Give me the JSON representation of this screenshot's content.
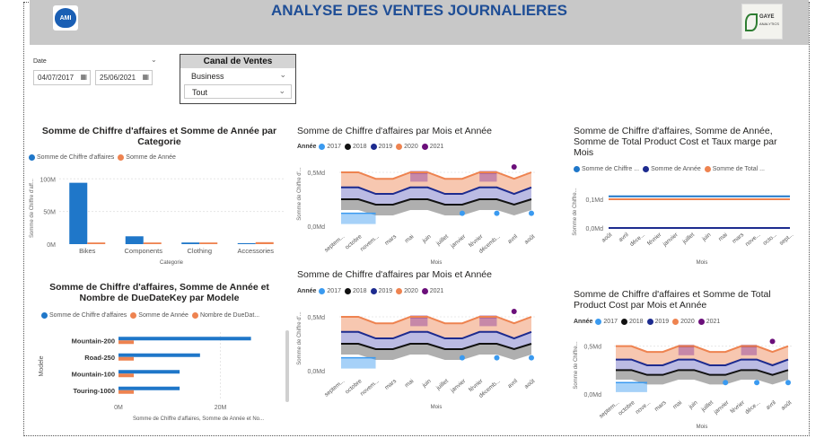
{
  "header": {
    "title": "ANALYSE DES VENTES JOURNALIERES",
    "logo_left": "AMI",
    "logo_right_1": "GAYE",
    "logo_right_2": "ANALYTICS"
  },
  "date_filter": {
    "label": "Date",
    "start": "04/07/2017",
    "end": "25/06/2021"
  },
  "canal": {
    "title": "Canal de Ventes",
    "option1": "Business",
    "option2": "Tout"
  },
  "colors": {
    "blue": "#1f77c9",
    "orange": "#ee8350",
    "black": "#111111",
    "navy": "#1d2b8f",
    "purple": "#6b0f7a",
    "lightblue": "#3a9af0"
  },
  "chart1": {
    "title_l1": "Somme de Chiffre d'affaires et Somme de Année par",
    "title_l2": "Categorie",
    "legend": [
      "Somme de Chiffre d'affaires",
      "Somme de Année"
    ],
    "ylabel": "Somme de Chiffre d'aff...",
    "xlabel": "Categorie",
    "ticks": [
      "100M",
      "50M",
      "0M"
    ]
  },
  "chart2": {
    "title_l1": "Somme de Chiffre d'affaires, Somme de Année et",
    "title_l2": "Nombre de DueDateKey par Modele",
    "legend": [
      "Somme de Chiffre d'affaires",
      "Somme de Année",
      "Nombre de DueDat..."
    ],
    "ylabel": "Modele",
    "xlabel": "Somme de Chiffre d'affaires, Somme de Année et No...",
    "ticks": [
      "0M",
      "20M"
    ]
  },
  "chart3": {
    "title": "Somme de Chiffre d'affaires par Mois et Année",
    "legend_label": "Année",
    "years": [
      "2017",
      "2018",
      "2019",
      "2020",
      "2021"
    ],
    "ylabel": "Somme de Chiffre d'...",
    "xlabel": "Mois",
    "ticks": [
      "0,5Md",
      "0,0Md"
    ],
    "months": [
      "septem...",
      "octobre",
      "novem...",
      "mars",
      "mai",
      "juin",
      "juillet",
      "janvier",
      "février",
      "décemb...",
      "avril",
      "août"
    ]
  },
  "chart4": {
    "title": "Somme de Chiffre d'affaires par Mois et Année",
    "legend_label": "Année",
    "years": [
      "2017",
      "2018",
      "2019",
      "2020",
      "2021"
    ],
    "ylabel": "Somme de Chiffre d'...",
    "xlabel": "Mois",
    "ticks": [
      "0,5Md",
      "0,0Md"
    ],
    "months": [
      "septem...",
      "octobre",
      "novem...",
      "mars",
      "mai",
      "juin",
      "juillet",
      "janvier",
      "février",
      "décemb...",
      "avril",
      "août"
    ]
  },
  "chart5": {
    "title_l1": "Somme de Chiffre d'affaires, Somme de Année,",
    "title_l2": "Somme de Total Product Cost et Taux marge par",
    "title_l3": "Mois",
    "legend": [
      "Somme de Chiffre ...",
      "Somme de Année",
      "Somme de Total ..."
    ],
    "ylabel": "Somme de Chiffre...",
    "xlabel": "Mois",
    "ticks": [
      "0,1Md",
      "0,0Md"
    ],
    "months": [
      "août",
      "avril",
      "déce...",
      "février",
      "janvier",
      "juillet",
      "juin",
      "mai",
      "mars",
      "nove...",
      "octo...",
      "sept..."
    ]
  },
  "chart6": {
    "title_l1": "Somme de Chiffre d'affaires et Somme de Total",
    "title_l2": "Product Cost par Mois et Année",
    "legend_label": "Année",
    "years": [
      "2017",
      "2018",
      "2019",
      "2020",
      "2021"
    ],
    "ylabel": "Somme de Chiffre...",
    "xlabel": "Mois",
    "ticks": [
      "0,5Md",
      "0,0Md"
    ],
    "months": [
      "septem...",
      "octobre",
      "nove...",
      "mars",
      "mai",
      "juin",
      "juillet",
      "janvier",
      "février",
      "déce...",
      "avril",
      "août"
    ]
  },
  "chart_data": [
    {
      "type": "bar",
      "title": "Somme de Chiffre d'affaires et Somme de Année par Categorie",
      "xlabel": "Categorie",
      "ylabel": "Somme de Chiffre d'aff...",
      "categories": [
        "Bikes",
        "Components",
        "Clothing",
        "Accessories"
      ],
      "series": [
        {
          "name": "Somme de Chiffre d'affaires",
          "values": [
            94,
            12,
            2.5,
            1.5
          ]
        },
        {
          "name": "Somme de Année",
          "values": [
            2.5,
            2.5,
            2.5,
            3
          ]
        }
      ],
      "ylim": [
        0,
        110
      ]
    },
    {
      "type": "bar",
      "title": "Somme de Chiffre d'affaires, Somme de Année et Nombre de DueDateKey par Modele",
      "xlabel": "Somme de Chiffre d'affaires, Somme de Année et No...",
      "ylabel": "Modele",
      "categories": [
        "Mountain-200",
        "Road-250",
        "Mountain-100",
        "Touring-1000"
      ],
      "series": [
        {
          "name": "Somme de Chiffre d'affaires",
          "values": [
            26,
            16,
            12,
            12
          ]
        },
        {
          "name": "Somme de Année",
          "values": [
            3,
            3,
            3,
            3
          ]
        },
        {
          "name": "Nombre de DueDat...",
          "values": [
            0.1,
            0.1,
            0.1,
            0.1
          ]
        }
      ],
      "xlim": [
        0,
        31
      ]
    },
    {
      "type": "area",
      "title": "Somme de Chiffre d'affaires par Mois et Année",
      "xlabel": "Mois",
      "ylabel": "Somme de Chiffre d'...",
      "categories": [
        "septem...",
        "octobre",
        "novem...",
        "mars",
        "mai",
        "juin",
        "juillet",
        "janvier",
        "février",
        "décemb...",
        "avril",
        "août"
      ],
      "series": [
        {
          "name": "2017",
          "values": [
            0.12,
            0.12,
            0.12,
            null,
            null,
            null,
            null,
            null,
            null,
            null,
            null,
            null
          ]
        },
        {
          "name": "2018",
          "values": [
            0.25,
            0.25,
            0.2,
            0.2,
            0.25,
            0.25,
            0.2,
            0.2,
            0.25,
            0.25,
            0.2,
            0.25
          ]
        },
        {
          "name": "2019",
          "values": [
            0.36,
            0.36,
            0.3,
            0.3,
            0.36,
            0.36,
            0.3,
            0.3,
            0.36,
            0.36,
            0.3,
            0.36
          ]
        },
        {
          "name": "2020",
          "values": [
            0.5,
            0.5,
            0.44,
            0.44,
            0.5,
            0.5,
            0.44,
            0.44,
            0.5,
            0.5,
            0.44,
            0.5
          ]
        },
        {
          "name": "2021",
          "values": [
            null,
            null,
            null,
            null,
            0.5,
            0.5,
            null,
            null,
            0.5,
            0.5,
            null,
            null
          ]
        }
      ],
      "ylim": [
        0,
        0.6
      ]
    },
    {
      "type": "area",
      "title": "Somme de Chiffre d'affaires par Mois et Année",
      "xlabel": "Mois",
      "ylabel": "Somme de Chiffre d'...",
      "categories": [
        "septem...",
        "octobre",
        "novem...",
        "mars",
        "mai",
        "juin",
        "juillet",
        "janvier",
        "février",
        "décemb...",
        "avril",
        "août"
      ],
      "series": [
        {
          "name": "2017",
          "values": [
            0.12,
            0.12,
            0.12,
            null,
            null,
            null,
            null,
            null,
            null,
            null,
            null,
            null
          ]
        },
        {
          "name": "2018",
          "values": [
            0.25,
            0.25,
            0.2,
            0.2,
            0.25,
            0.25,
            0.2,
            0.2,
            0.25,
            0.25,
            0.2,
            0.25
          ]
        },
        {
          "name": "2019",
          "values": [
            0.36,
            0.36,
            0.3,
            0.3,
            0.36,
            0.36,
            0.3,
            0.3,
            0.36,
            0.36,
            0.3,
            0.36
          ]
        },
        {
          "name": "2020",
          "values": [
            0.5,
            0.5,
            0.44,
            0.44,
            0.5,
            0.5,
            0.44,
            0.44,
            0.5,
            0.5,
            0.44,
            0.5
          ]
        },
        {
          "name": "2021",
          "values": [
            null,
            null,
            null,
            null,
            0.5,
            0.5,
            null,
            null,
            0.5,
            0.5,
            null,
            null
          ]
        }
      ],
      "ylim": [
        0,
        0.6
      ]
    },
    {
      "type": "line",
      "title": "Somme de Chiffre d'affaires, Somme de Année, Somme de Total Product Cost et Taux marge par Mois",
      "xlabel": "Mois",
      "ylabel": "Somme de Chiffre...",
      "categories": [
        "août",
        "avril",
        "déce...",
        "février",
        "janvier",
        "juillet",
        "juin",
        "mai",
        "mars",
        "nove...",
        "octo...",
        "sept..."
      ],
      "series": [
        {
          "name": "Somme de Chiffre ...",
          "values": [
            0.11,
            0.11,
            0.11,
            0.11,
            0.11,
            0.11,
            0.11,
            0.11,
            0.11,
            0.11,
            0.11,
            0.11
          ]
        },
        {
          "name": "Somme de Année",
          "values": [
            0,
            0,
            0,
            0,
            0,
            0,
            0,
            0,
            0,
            0,
            0,
            0
          ]
        },
        {
          "name": "Somme de Total ...",
          "values": [
            0.1,
            0.1,
            0.1,
            0.1,
            0.1,
            0.1,
            0.1,
            0.1,
            0.1,
            0.1,
            0.1,
            0.1
          ]
        }
      ],
      "ylim": [
        0,
        0.15
      ]
    },
    {
      "type": "area",
      "title": "Somme de Chiffre d'affaires et Somme de Total Product Cost par Mois et Année",
      "xlabel": "Mois",
      "ylabel": "Somme de Chiffre...",
      "categories": [
        "septem...",
        "octobre",
        "nove...",
        "mars",
        "mai",
        "juin",
        "juillet",
        "janvier",
        "février",
        "déce...",
        "avril",
        "août"
      ],
      "series": [
        {
          "name": "2017",
          "values": [
            0.12,
            0.12,
            0.12,
            null,
            null,
            null,
            null,
            null,
            null,
            null,
            null,
            null
          ]
        },
        {
          "name": "2018",
          "values": [
            0.25,
            0.25,
            0.2,
            0.2,
            0.25,
            0.25,
            0.2,
            0.2,
            0.25,
            0.25,
            0.2,
            0.25
          ]
        },
        {
          "name": "2019",
          "values": [
            0.36,
            0.36,
            0.3,
            0.3,
            0.36,
            0.36,
            0.3,
            0.3,
            0.36,
            0.36,
            0.3,
            0.36
          ]
        },
        {
          "name": "2020",
          "values": [
            0.5,
            0.5,
            0.44,
            0.44,
            0.5,
            0.5,
            0.44,
            0.44,
            0.5,
            0.5,
            0.44,
            0.5
          ]
        },
        {
          "name": "2021",
          "values": [
            null,
            null,
            null,
            null,
            0.5,
            0.5,
            null,
            null,
            0.5,
            0.5,
            null,
            null
          ]
        }
      ],
      "ylim": [
        0,
        0.6
      ]
    }
  ]
}
